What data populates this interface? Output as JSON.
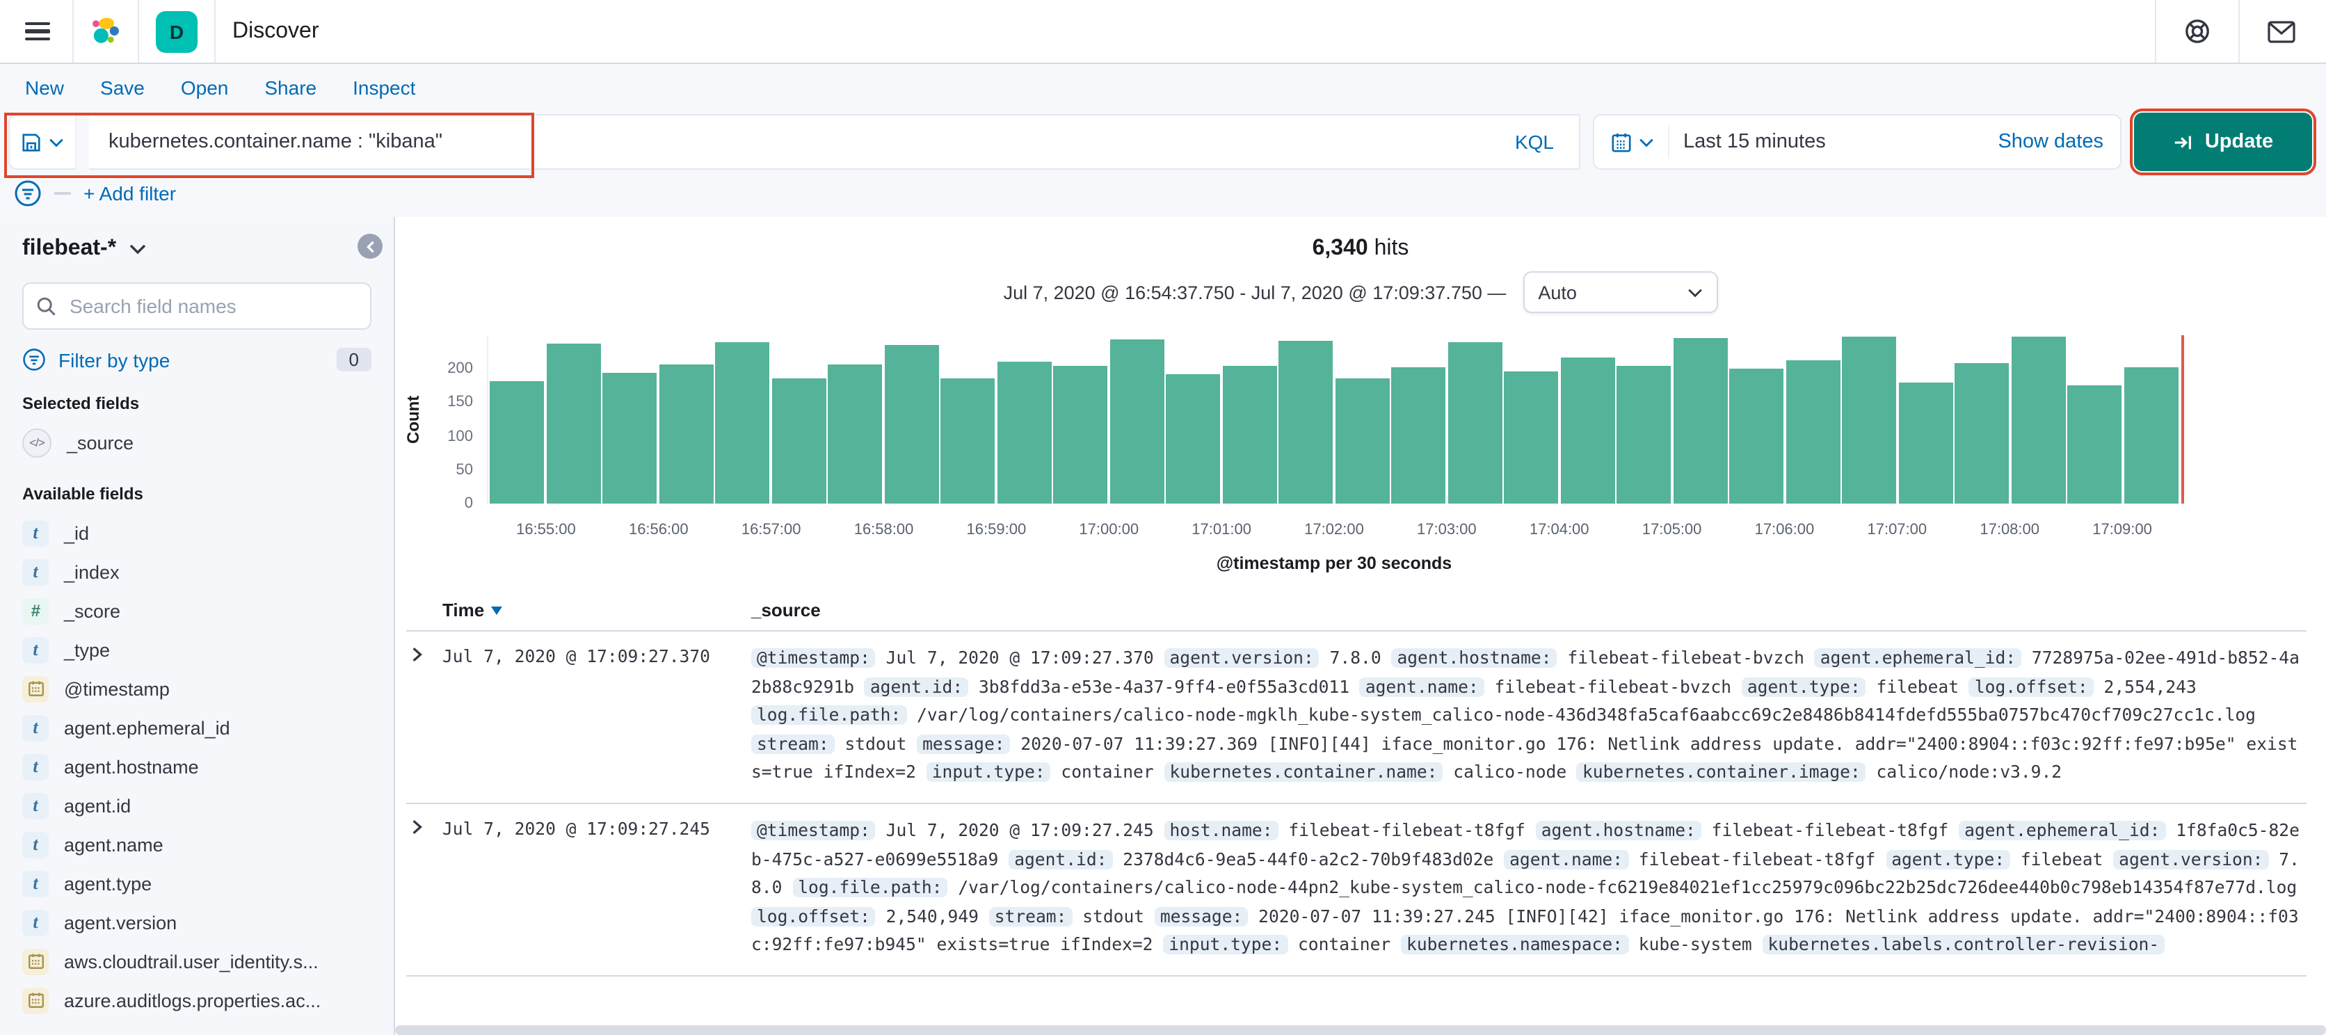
{
  "header": {
    "app_title": "Discover",
    "badge": "D"
  },
  "toolbar": {
    "items": [
      "New",
      "Save",
      "Open",
      "Share",
      "Inspect"
    ]
  },
  "query_bar": {
    "query": "kubernetes.container.name : \"kibana\"",
    "language_label": "KQL",
    "time_range": "Last 15 minutes",
    "show_dates_label": "Show dates",
    "update_label": "Update"
  },
  "filter_bar": {
    "add_filter_label": "+ Add filter"
  },
  "sidebar": {
    "index_pattern": "filebeat-*",
    "search_placeholder": "Search field names",
    "filter_by_type_label": "Filter by type",
    "filter_count": "0",
    "selected_fields_label": "Selected fields",
    "selected_fields": [
      {
        "name": "_source",
        "type": "source"
      }
    ],
    "available_fields_label": "Available fields",
    "available_fields": [
      {
        "name": "_id",
        "type": "string"
      },
      {
        "name": "_index",
        "type": "string"
      },
      {
        "name": "_score",
        "type": "number"
      },
      {
        "name": "_type",
        "type": "string"
      },
      {
        "name": "@timestamp",
        "type": "date"
      },
      {
        "name": "agent.ephemeral_id",
        "type": "string"
      },
      {
        "name": "agent.hostname",
        "type": "string"
      },
      {
        "name": "agent.id",
        "type": "string"
      },
      {
        "name": "agent.name",
        "type": "string"
      },
      {
        "name": "agent.type",
        "type": "string"
      },
      {
        "name": "agent.version",
        "type": "string"
      },
      {
        "name": "aws.cloudtrail.user_identity.s...",
        "type": "date"
      },
      {
        "name": "azure.auditlogs.properties.ac...",
        "type": "date"
      }
    ]
  },
  "results": {
    "hits_count": "6,340",
    "hits_label": "hits",
    "time_range_display": "Jul 7, 2020 @ 16:54:37.750 - Jul 7, 2020 @ 17:09:37.750 —",
    "interval_label": "Auto"
  },
  "chart_data": {
    "type": "bar",
    "title": "6,340 hits",
    "xlabel": "@timestamp per 30 seconds",
    "ylabel": "Count",
    "ylim": [
      0,
      250
    ],
    "y_ticks": [
      0,
      50,
      100,
      150,
      200
    ],
    "grid": false,
    "legend": "none",
    "bucket_interval_seconds": 30,
    "x": [
      "16:54:30",
      "16:55:00",
      "16:55:30",
      "16:56:00",
      "16:56:30",
      "16:57:00",
      "16:57:30",
      "16:58:00",
      "16:58:30",
      "16:59:00",
      "16:59:30",
      "17:00:00",
      "17:00:30",
      "17:01:00",
      "17:01:30",
      "17:02:00",
      "17:02:30",
      "17:03:00",
      "17:03:30",
      "17:04:00",
      "17:04:30",
      "17:05:00",
      "17:05:30",
      "17:06:00",
      "17:06:30",
      "17:07:00",
      "17:07:30",
      "17:08:00",
      "17:08:30",
      "17:09:00"
    ],
    "values": [
      181,
      238,
      195,
      207,
      240,
      187,
      207,
      235,
      186,
      210,
      205,
      243,
      193,
      205,
      242,
      185,
      203,
      240,
      197,
      218,
      205,
      245,
      200,
      212,
      248,
      180,
      208,
      248,
      175,
      202
    ],
    "x_tick_labels": [
      "16:55:00",
      "16:56:00",
      "16:57:00",
      "16:58:00",
      "16:59:00",
      "17:00:00",
      "17:01:00",
      "17:02:00",
      "17:03:00",
      "17:04:00",
      "17:05:00",
      "17:06:00",
      "17:07:00",
      "17:08:00",
      "17:09:00"
    ],
    "bar_color": "#54b399",
    "current_time_marker": true
  },
  "table": {
    "columns": [
      "Time",
      "_source"
    ],
    "rows": [
      {
        "time": "Jul 7, 2020 @ 17:09:27.370",
        "pairs": [
          {
            "f": "@timestamp:",
            "v": "Jul 7, 2020 @ 17:09:27.370"
          },
          {
            "f": "agent.version:",
            "v": "7.8.0"
          },
          {
            "f": "agent.hostname:",
            "v": "filebeat-filebeat-bvzch"
          },
          {
            "f": "agent.ephemeral_id:",
            "v": "7728975a-02ee-491d-b852-4a2b88c9291b"
          },
          {
            "f": "agent.id:",
            "v": "3b8fdd3a-e53e-4a37-9ff4-e0f55a3cd011"
          },
          {
            "f": "agent.name:",
            "v": "filebeat-filebeat-bvzch"
          },
          {
            "f": "agent.type:",
            "v": "filebeat"
          },
          {
            "f": "log.offset:",
            "v": "2,554,243"
          },
          {
            "f": "log.file.path:",
            "v": "/var/log/containers/calico-node-mgklh_kube-system_calico-node-436d348fa5caf6aabcc69c2e8486b8414fdefd555ba0757bc470cf709c27cc1c.log"
          },
          {
            "f": "stream:",
            "v": "stdout"
          },
          {
            "f": "message:",
            "v": "2020-07-07 11:39:27.369 [INFO][44] iface_monitor.go 176: Netlink address update. addr=\"2400:8904::f03c:92ff:fe97:b95e\" exists=true ifIndex=2"
          },
          {
            "f": "input.type:",
            "v": "container"
          },
          {
            "f": "kubernetes.container.name:",
            "v": "calico-node"
          },
          {
            "f": "kubernetes.container.image:",
            "v": "calico/node:v3.9.2"
          }
        ]
      },
      {
        "time": "Jul 7, 2020 @ 17:09:27.245",
        "pairs": [
          {
            "f": "@timestamp:",
            "v": "Jul 7, 2020 @ 17:09:27.245"
          },
          {
            "f": "host.name:",
            "v": "filebeat-filebeat-t8fgf"
          },
          {
            "f": "agent.hostname:",
            "v": "filebeat-filebeat-t8fgf"
          },
          {
            "f": "agent.ephemeral_id:",
            "v": "1f8fa0c5-82eb-475c-a527-e0699e5518a9"
          },
          {
            "f": "agent.id:",
            "v": "2378d4c6-9ea5-44f0-a2c2-70b9f483d02e"
          },
          {
            "f": "agent.name:",
            "v": "filebeat-filebeat-t8fgf"
          },
          {
            "f": "agent.type:",
            "v": "filebeat"
          },
          {
            "f": "agent.version:",
            "v": "7.8.0"
          },
          {
            "f": "log.file.path:",
            "v": "/var/log/containers/calico-node-44pn2_kube-system_calico-node-fc6219e84021ef1cc25979c096bc22b25dc726dee440b0c798eb14354f87e77d.log"
          },
          {
            "f": "log.offset:",
            "v": "2,540,949"
          },
          {
            "f": "stream:",
            "v": "stdout"
          },
          {
            "f": "message:",
            "v": "2020-07-07 11:39:27.245 [INFO][42] iface_monitor.go 176: Netlink address update. addr=\"2400:8904::f03c:92ff:fe97:b945\" exists=true ifIndex=2"
          },
          {
            "f": "input.type:",
            "v": "container"
          },
          {
            "f": "kubernetes.namespace:",
            "v": "kube-system"
          },
          {
            "f": "kubernetes.labels.controller-revision-",
            "v": ""
          }
        ]
      }
    ]
  },
  "icons": {
    "hamburger-icon": "three-bars-menu",
    "elastic-logo": "multicolor-blob-cluster",
    "help-icon": "life-ring",
    "newsfeed-icon": "envelope",
    "save-query-icon": "floppy-disk",
    "chevron-down-icon": "chevron-down",
    "calendar-icon": "calendar-grid",
    "update-icon": "arrow-into-bar",
    "filter-icon": "circled-filter-lines",
    "search-icon": "magnifier",
    "collapse-icon": "chevron-left-in-circle",
    "sort-desc-icon": "down-triangle",
    "expand-icon": "chevron-right",
    "string-field-icon": "t",
    "number-field-icon": "#",
    "date-field-icon": "calendar",
    "source-field-icon": "</>"
  },
  "colors": {
    "accent_link": "#006bb4",
    "bar": "#54b399",
    "update_button": "#017d73",
    "annotation": "#e0462b",
    "now_marker": "#dd5a4c",
    "app_badge": "#00bfb3",
    "field_badge_bg": "#e6eef6",
    "count_badge_bg": "#e0e5ee"
  }
}
